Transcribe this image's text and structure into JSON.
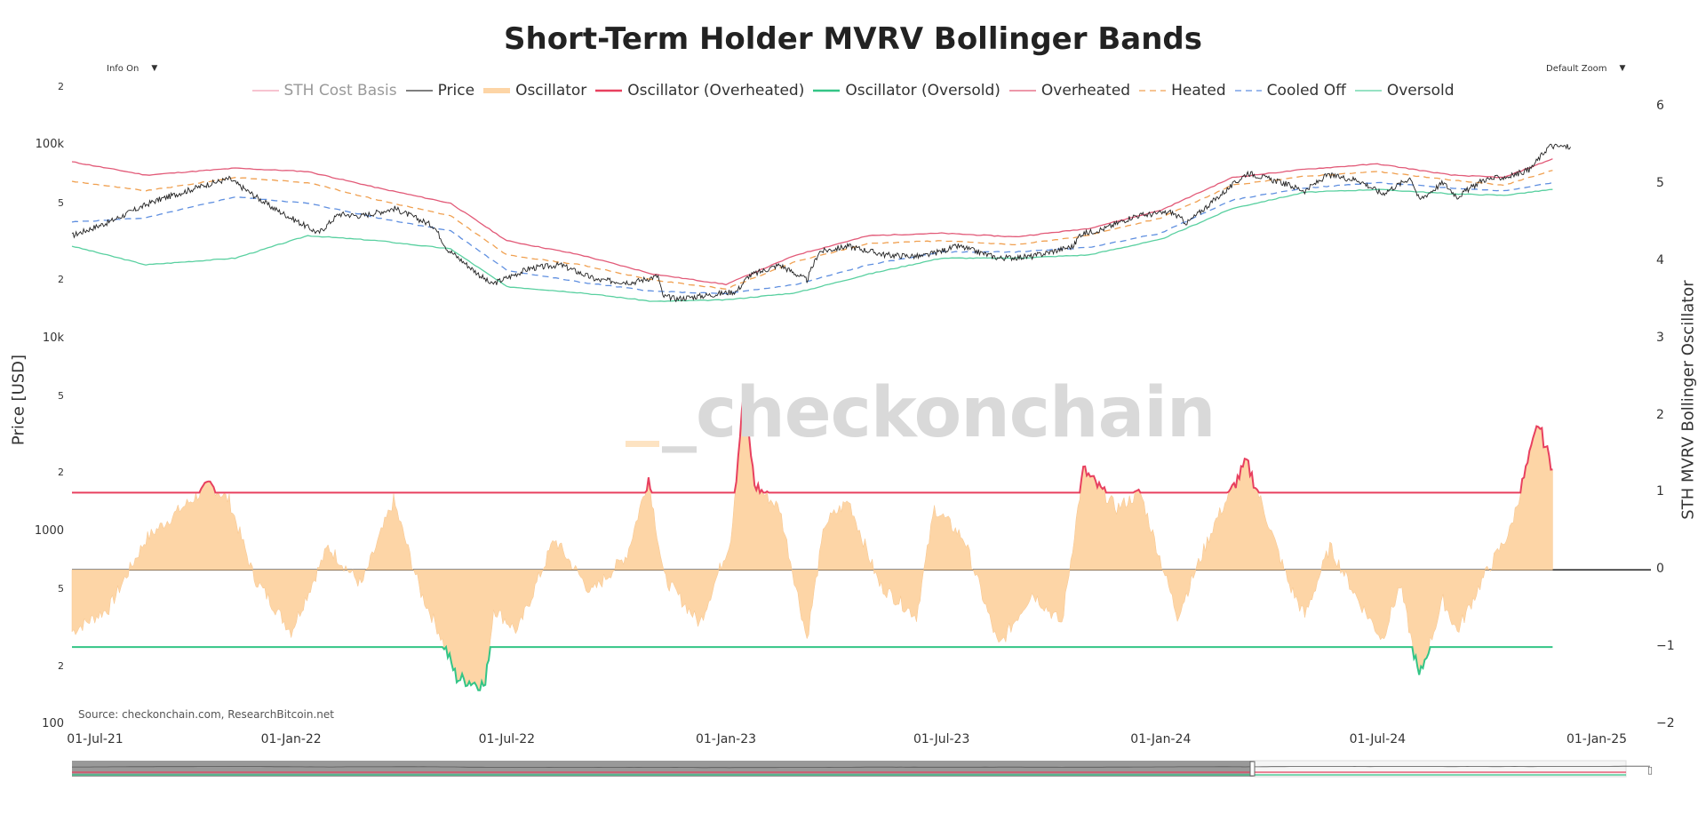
{
  "title": "Short-Term Holder MVRV Bollinger Bands",
  "info_dropdown": {
    "label": "Info On"
  },
  "zoom_dropdown": {
    "label": "Default Zoom"
  },
  "legend": [
    {
      "name": "STH Cost Basis",
      "color": "#f2a0b4",
      "style": "line",
      "enabled": false
    },
    {
      "name": "Price",
      "color": "#333333",
      "style": "line",
      "enabled": true
    },
    {
      "name": "Oscillator",
      "color": "#fdd5a6",
      "style": "area",
      "enabled": true
    },
    {
      "name": "Oscillator (Overheated)",
      "color": "#e8405f",
      "style": "line-thick",
      "enabled": true
    },
    {
      "name": "Oscillator (Oversold)",
      "color": "#33c586",
      "style": "line-thick",
      "enabled": true
    },
    {
      "name": "Overheated",
      "color": "#e25a78",
      "style": "line",
      "enabled": true
    },
    {
      "name": "Heated",
      "color": "#f0a050",
      "style": "dash",
      "enabled": true
    },
    {
      "name": "Cooled Off",
      "color": "#5f8fe0",
      "style": "dash",
      "enabled": true
    },
    {
      "name": "Oversold",
      "color": "#59d0a0",
      "style": "line",
      "enabled": true
    }
  ],
  "watermark": "_checkonchain",
  "source": "Source: checkonchain.com, ResearchBitcoin.net",
  "axes": {
    "y_left_title": "Price [USD]",
    "y_left_ticks": [
      "100k",
      "10k",
      "1000",
      "100"
    ],
    "y_left_minor_ticks": [
      "2",
      "5",
      "2",
      "5",
      "2",
      "5",
      "2",
      "5",
      "2"
    ],
    "y_right_title": "STH MVRV Bollinger Oscillator",
    "y_right_ticks": [
      "6",
      "5",
      "4",
      "3",
      "2",
      "1",
      "0",
      "−1",
      "−2"
    ],
    "x_ticks": [
      "01-Jul-21",
      "01-Jan-22",
      "01-Jul-22",
      "01-Jan-23",
      "01-Jul-23",
      "01-Jan-24",
      "01-Jul-24",
      "01-Jan-25"
    ]
  },
  "chart_data": {
    "type": "line",
    "x_range": [
      "2021-07-01",
      "2025-01-01"
    ],
    "y_left": {
      "scale": "log",
      "range": [
        100,
        200000
      ],
      "unit": "USD"
    },
    "y_right": {
      "scale": "linear",
      "range": [
        -2,
        6
      ]
    },
    "price": {
      "x": [
        "2021-07-01",
        "2021-08-01",
        "2021-09-07",
        "2021-10-20",
        "2021-11-10",
        "2021-12-15",
        "2022-01-24",
        "2022-02-10",
        "2022-03-01",
        "2022-03-29",
        "2022-05-01",
        "2022-05-12",
        "2022-06-18",
        "2022-07-20",
        "2022-08-15",
        "2022-09-15",
        "2022-10-15",
        "2022-11-05",
        "2022-11-09",
        "2022-11-21",
        "2022-12-20",
        "2023-01-10",
        "2023-01-20",
        "2023-02-15",
        "2023-03-10",
        "2023-03-20",
        "2023-04-14",
        "2023-05-15",
        "2023-06-15",
        "2023-07-15",
        "2023-08-18",
        "2023-09-15",
        "2023-10-20",
        "2023-10-25",
        "2023-11-15",
        "2023-12-10",
        "2024-01-10",
        "2024-01-23",
        "2024-02-15",
        "2024-03-14",
        "2024-04-15",
        "2024-05-01",
        "2024-05-20",
        "2024-06-15",
        "2024-07-05",
        "2024-07-29",
        "2024-08-05",
        "2024-08-25",
        "2024-09-06",
        "2024-09-27",
        "2024-10-20",
        "2024-11-06",
        "2024-11-22",
        "2024-12-10"
      ],
      "values": [
        34000,
        40000,
        51000,
        62000,
        67000,
        48000,
        35000,
        44000,
        43000,
        47000,
        38000,
        29000,
        19000,
        23000,
        24000,
        20000,
        19500,
        21000,
        16500,
        16000,
        16800,
        17500,
        21000,
        24000,
        20000,
        28000,
        30000,
        27000,
        26500,
        30000,
        26000,
        26500,
        30000,
        34500,
        37000,
        43000,
        45000,
        39500,
        52000,
        72000,
        63000,
        58000,
        70000,
        66000,
        56000,
        68000,
        52000,
        64000,
        54000,
        66000,
        69000,
        75000,
        99000,
        98000
      ]
    },
    "bands": {
      "x": [
        "2021-07-01",
        "2021-09-01",
        "2021-11-15",
        "2022-01-15",
        "2022-03-15",
        "2022-05-15",
        "2022-07-01",
        "2022-09-01",
        "2022-11-01",
        "2023-01-01",
        "2023-03-01",
        "2023-05-01",
        "2023-07-01",
        "2023-09-01",
        "2023-11-01",
        "2024-01-01",
        "2024-03-01",
        "2024-05-01",
        "2024-07-01",
        "2024-09-01",
        "2024-10-15",
        "2024-11-25"
      ],
      "overheated": [
        82000,
        70000,
        76000,
        73000,
        60000,
        50000,
        32000,
        27000,
        21500,
        19000,
        27000,
        34000,
        35000,
        33500,
        37000,
        46000,
        68000,
        75000,
        80000,
        70000,
        68000,
        85000
      ],
      "heated": [
        65000,
        58000,
        68000,
        64000,
        52000,
        43000,
        27000,
        24000,
        20000,
        18000,
        25000,
        31000,
        32000,
        30500,
        34000,
        42000,
        62000,
        69000,
        73000,
        66000,
        62000,
        74000
      ],
      "cooled_off": [
        40000,
        42000,
        54000,
        50000,
        42000,
        36000,
        22500,
        19500,
        17500,
        17000,
        19000,
        24000,
        28000,
        28000,
        29500,
        35000,
        52000,
        60000,
        64000,
        60000,
        58000,
        64000
      ],
      "oversold": [
        30000,
        24000,
        26000,
        34000,
        32000,
        29000,
        18500,
        17200,
        15500,
        15800,
        17200,
        21500,
        26000,
        26000,
        27000,
        32500,
        47000,
        57000,
        59000,
        56000,
        55000,
        59000
      ]
    },
    "oscillator": {
      "x": [
        "2021-07-01",
        "2021-08-01",
        "2021-09-01",
        "2021-10-01",
        "2021-10-25",
        "2021-11-10",
        "2021-12-01",
        "2022-01-01",
        "2022-02-01",
        "2022-03-01",
        "2022-03-28",
        "2022-04-20",
        "2022-05-05",
        "2022-05-20",
        "2022-06-13",
        "2022-06-20",
        "2022-07-10",
        "2022-08-10",
        "2022-09-10",
        "2022-10-10",
        "2022-10-28",
        "2022-11-10",
        "2022-12-10",
        "2023-01-05",
        "2023-01-16",
        "2023-01-25",
        "2023-02-15",
        "2023-03-10",
        "2023-03-25",
        "2023-04-14",
        "2023-05-10",
        "2023-06-10",
        "2023-06-25",
        "2023-07-20",
        "2023-08-18",
        "2023-09-15",
        "2023-10-10",
        "2023-10-28",
        "2023-11-25",
        "2023-12-15",
        "2024-01-15",
        "2024-02-15",
        "2024-03-13",
        "2024-03-25",
        "2024-04-18",
        "2024-05-01",
        "2024-05-22",
        "2024-06-15",
        "2024-07-05",
        "2024-07-20",
        "2024-08-05",
        "2024-08-25",
        "2024-09-06",
        "2024-09-28",
        "2024-10-20",
        "2024-11-13",
        "2024-11-25"
      ],
      "values": [
        -0.8,
        -0.5,
        0.4,
        0.8,
        1.1,
        0.9,
        -0.1,
        -0.8,
        0.3,
        -0.2,
        0.9,
        -0.3,
        -0.8,
        -1.4,
        -1.5,
        -0.5,
        -0.8,
        0.4,
        -0.3,
        0.2,
        1.2,
        -0.1,
        -0.7,
        0.4,
        2.3,
        1.1,
        0.8,
        -0.9,
        0.6,
        0.9,
        -0.2,
        -0.6,
        0.8,
        0.4,
        -1.0,
        -0.3,
        -0.7,
        1.3,
        0.8,
        1.0,
        -0.6,
        0.6,
        1.4,
        0.9,
        -0.2,
        -0.6,
        0.3,
        -0.4,
        -0.9,
        -0.2,
        -1.4,
        -0.4,
        -0.8,
        -0.1,
        0.5,
        1.9,
        1.3
      ]
    },
    "thresholds": {
      "overheated": 1,
      "oversold": -1,
      "zero": 0
    }
  }
}
